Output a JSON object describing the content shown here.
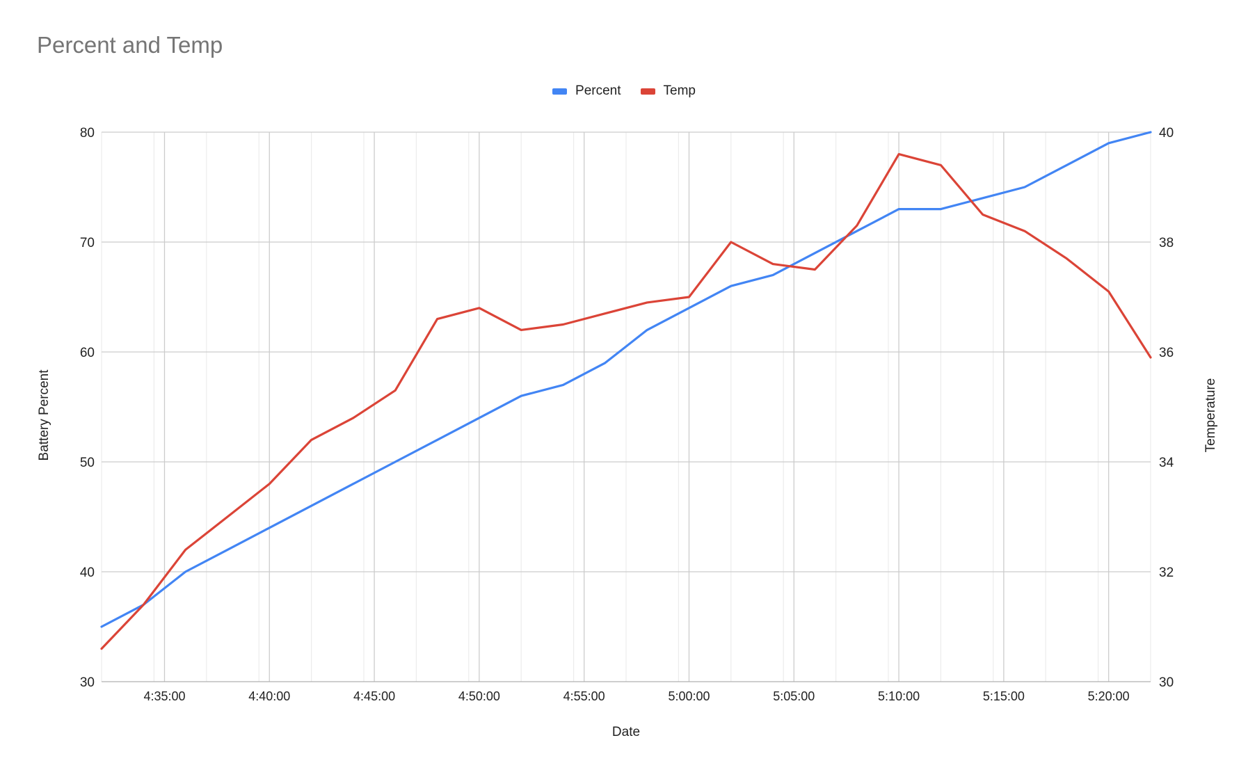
{
  "chart_data": {
    "type": "line",
    "title": "Percent and Temp",
    "xlabel": "Date",
    "ylabel_left": "Battery Percent",
    "ylabel_right": "Temperature",
    "x_tick_labels": [
      "4:35:00",
      "4:40:00",
      "4:45:00",
      "4:50:00",
      "4:55:00",
      "5:00:00",
      "5:05:00",
      "5:10:00",
      "5:15:00",
      "5:20:00"
    ],
    "x": [
      "4:32:00",
      "4:34:00",
      "4:36:00",
      "4:38:00",
      "4:40:00",
      "4:42:00",
      "4:44:00",
      "4:46:00",
      "4:48:00",
      "4:50:00",
      "4:52:00",
      "4:54:00",
      "4:56:00",
      "4:58:00",
      "5:00:00",
      "5:02:00",
      "5:04:00",
      "5:06:00",
      "5:08:00",
      "5:10:00",
      "5:12:00",
      "5:14:00",
      "5:16:00",
      "5:18:00",
      "5:20:00",
      "5:22:00"
    ],
    "xlim": [
      "4:32:00",
      "5:22:00"
    ],
    "ylim_left": [
      30,
      80
    ],
    "ylim_right": [
      30,
      40
    ],
    "y_ticks_left": [
      30,
      40,
      50,
      60,
      70,
      80
    ],
    "y_ticks_right": [
      30,
      32,
      34,
      36,
      38,
      40
    ],
    "grid": true,
    "legend_position": "top",
    "series": [
      {
        "name": "Percent",
        "axis": "left",
        "color": "#4285f4",
        "values": [
          35,
          37,
          40,
          42,
          44,
          46,
          48,
          50,
          52,
          54,
          56,
          57,
          59,
          62,
          64,
          66,
          67,
          69,
          71,
          73,
          73,
          74,
          75,
          77,
          79,
          80
        ]
      },
      {
        "name": "Temp",
        "axis": "right",
        "color": "#db4437",
        "values": [
          30.6,
          31.4,
          32.4,
          33.0,
          33.6,
          34.4,
          34.8,
          35.3,
          36.6,
          36.8,
          36.4,
          36.5,
          36.7,
          36.9,
          37.0,
          38.0,
          37.6,
          37.5,
          38.3,
          39.6,
          39.4,
          38.5,
          38.2,
          37.7,
          37.1,
          35.9
        ]
      }
    ]
  }
}
